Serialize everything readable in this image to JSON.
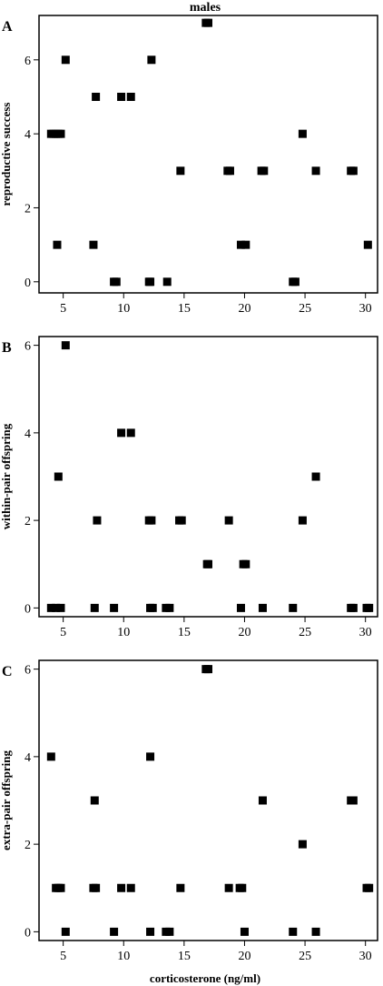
{
  "figure_title": "males",
  "xlabel": "corticosterone (ng/ml)",
  "chart_data": [
    {
      "type": "scatter",
      "panel_letter": "A",
      "title": "males",
      "ylabel": "reproductive success",
      "xlabel": "",
      "xlim": [
        3,
        31
      ],
      "ylim": [
        -0.3,
        7.2
      ],
      "xticks": [
        5,
        10,
        15,
        20,
        25,
        30
      ],
      "yticks": [
        0,
        2,
        4,
        6
      ],
      "x": [
        4.0,
        4.2,
        4.4,
        4.6,
        4.8,
        4.5,
        5.2,
        7.5,
        7.7,
        9.2,
        9.4,
        9.8,
        10.6,
        12.1,
        12.2,
        12.3,
        13.6,
        14.7,
        16.8,
        17.0,
        18.6,
        18.8,
        19.7,
        20.1,
        21.4,
        21.6,
        24.0,
        24.2,
        24.8,
        25.9,
        28.8,
        29.0,
        30.2
      ],
      "y": [
        4,
        4,
        4,
        4,
        4,
        1,
        6,
        1,
        5,
        0,
        0,
        5,
        5,
        0,
        0,
        6,
        0,
        3,
        7,
        7,
        3,
        3,
        1,
        1,
        3,
        3,
        0,
        0,
        4,
        3,
        3,
        3,
        1
      ],
      "marker": "square",
      "color": "#000000",
      "grid": false
    },
    {
      "type": "scatter",
      "panel_letter": "B",
      "title": "",
      "ylabel": "within-pair offspring",
      "xlabel": "",
      "xlim": [
        3,
        31
      ],
      "ylim": [
        -0.2,
        6.2
      ],
      "xticks": [
        5,
        10,
        15,
        20,
        25,
        30
      ],
      "yticks": [
        0,
        2,
        4,
        6
      ],
      "x": [
        4.0,
        4.4,
        4.6,
        4.8,
        5.2,
        7.6,
        7.8,
        9.2,
        9.8,
        10.6,
        12.1,
        12.3,
        12.2,
        12.4,
        13.5,
        13.8,
        14.6,
        14.8,
        16.9,
        17.0,
        18.7,
        19.7,
        19.9,
        20.1,
        21.5,
        24.0,
        24.8,
        25.9,
        28.8,
        29.0,
        30.1,
        30.3
      ],
      "y": [
        0,
        0,
        3,
        0,
        6,
        0,
        2,
        0,
        4,
        4,
        2,
        2,
        0,
        0,
        0,
        0,
        2,
        2,
        1,
        1,
        2,
        0,
        1,
        1,
        0,
        0,
        2,
        3,
        0,
        0,
        0,
        0
      ],
      "marker": "square",
      "color": "#000000",
      "grid": false
    },
    {
      "type": "scatter",
      "panel_letter": "C",
      "title": "",
      "ylabel": "extra-pair offspring",
      "xlabel": "corticosterone (ng/ml)",
      "xlim": [
        3,
        31
      ],
      "ylim": [
        -0.2,
        6.2
      ],
      "xticks": [
        5,
        10,
        15,
        20,
        25,
        30
      ],
      "yticks": [
        0,
        2,
        4,
        6
      ],
      "x": [
        4.0,
        4.4,
        4.6,
        4.8,
        5.2,
        7.5,
        7.7,
        7.6,
        9.2,
        9.8,
        10.6,
        12.2,
        12.2,
        13.5,
        13.8,
        14.7,
        16.8,
        17.0,
        18.7,
        19.6,
        19.8,
        20.0,
        21.5,
        24.0,
        24.8,
        25.9,
        28.8,
        29.0,
        30.1,
        30.3
      ],
      "y": [
        4,
        1,
        1,
        1,
        0,
        1,
        1,
        3,
        0,
        1,
        1,
        0,
        4,
        0,
        0,
        1,
        6,
        6,
        1,
        1,
        1,
        0,
        3,
        0,
        2,
        0,
        3,
        3,
        1,
        1
      ],
      "marker": "square",
      "color": "#000000",
      "grid": false
    }
  ]
}
